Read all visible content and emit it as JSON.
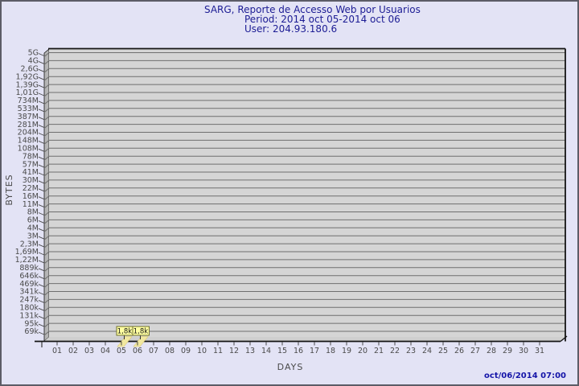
{
  "header": {
    "title": "SARG, Reporte de Accesso Web por Usuarios",
    "period": "Period: 2014 oct 05-2014 oct 06",
    "user": "User: 204.93.180.6"
  },
  "footer": {
    "timestamp": "oct/06/2014 07:00"
  },
  "chart_data": {
    "type": "bar",
    "title": "SARG, Reporte de Accesso Web por Usuarios",
    "subtitle": "Period: 2014 oct 05-2014 oct 06",
    "user_line": "User: 204.93.180.6",
    "xlabel": "DAYS",
    "ylabel": "BYTES",
    "x_categories": [
      "01",
      "02",
      "03",
      "04",
      "05",
      "06",
      "07",
      "08",
      "09",
      "10",
      "11",
      "12",
      "13",
      "14",
      "15",
      "16",
      "17",
      "18",
      "19",
      "20",
      "21",
      "22",
      "23",
      "24",
      "25",
      "26",
      "27",
      "28",
      "29",
      "30",
      "31"
    ],
    "y_tick_labels": [
      "5G",
      "4G",
      "2,6G",
      "1,92G",
      "1,39G",
      "1,01G",
      "734M",
      "533M",
      "387M",
      "281M",
      "204M",
      "148M",
      "108M",
      "78M",
      "57M",
      "41M",
      "30M",
      "22M",
      "16M",
      "11M",
      "8M",
      "6M",
      "4M",
      "3M",
      "2,3M",
      "1,69M",
      "1,22M",
      "889k",
      "646k",
      "469k",
      "341k",
      "247k",
      "180k",
      "131k",
      "95k",
      "69k"
    ],
    "values_by_day": [
      0,
      0,
      0,
      0,
      1800,
      1800,
      0,
      0,
      0,
      0,
      0,
      0,
      0,
      0,
      0,
      0,
      0,
      0,
      0,
      0,
      0,
      0,
      0,
      0,
      0,
      0,
      0,
      0,
      0,
      0,
      0
    ],
    "bars": [
      {
        "day": "05",
        "label": "1,8k",
        "bytes": 1800
      },
      {
        "day": "06",
        "label": "1,8k",
        "bytes": 1800
      }
    ],
    "legend": null,
    "grid": true,
    "colors": {
      "background": "#e3e3f5",
      "panel": "#d5d5d5",
      "floor": "#cfcfcf",
      "wall": "#b5b5b5",
      "grid": "#6f6f6f",
      "edge": "#141414",
      "axis_text": "#4a4a4a",
      "title_text": "#1c1c94",
      "timestamp_text": "#1414a8",
      "bar_fill": "#f1e8a0",
      "bar_edge": "#dcca74",
      "label_box_bg": "#ffffa2",
      "label_box_border": "#70702e",
      "label_text": "#151515"
    }
  }
}
